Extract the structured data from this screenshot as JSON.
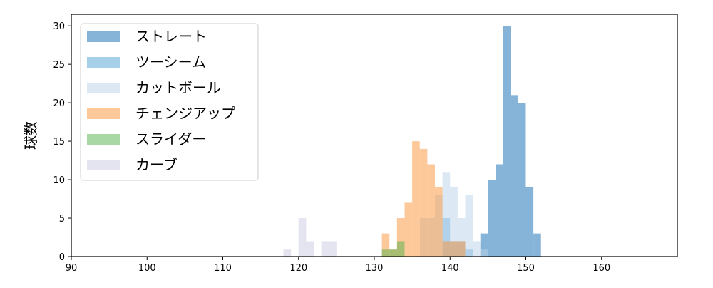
{
  "chart_data": {
    "type": "histogram",
    "ylabel": "球数",
    "xlim": [
      90,
      170
    ],
    "xticks": [
      90,
      100,
      110,
      120,
      130,
      140,
      150,
      160
    ],
    "ylim": [
      0,
      31.5
    ],
    "yticks": [
      0,
      5,
      10,
      15,
      20,
      25,
      30
    ],
    "legend": "upper left",
    "opacity": 0.5,
    "series": [
      {
        "name": "ストレート",
        "color": "#0d69b1",
        "bins": [
          144,
          145,
          146,
          147,
          148,
          149,
          150,
          151,
          152
        ],
        "values": [
          3,
          10,
          12,
          30,
          21,
          20,
          9,
          3
        ]
      },
      {
        "name": "ツーシーム",
        "color": "#4da1d1",
        "bins": [
          139,
          140,
          141,
          142,
          143
        ],
        "values": [
          5,
          2,
          2,
          1
        ]
      },
      {
        "name": "カットボール",
        "color": "#b9d1e9",
        "bins": [
          136,
          137,
          138,
          139,
          140,
          141,
          142,
          143,
          144,
          145
        ],
        "values": [
          5,
          5,
          8,
          11,
          9,
          5,
          8,
          2,
          1
        ]
      },
      {
        "name": "チェンジアップ",
        "color": "#fb9337",
        "bins": [
          131,
          132,
          133,
          134,
          135,
          136,
          137,
          138,
          139,
          140,
          141,
          142
        ],
        "values": [
          3,
          1,
          5,
          7,
          15,
          14,
          12,
          9,
          2,
          2,
          2
        ]
      },
      {
        "name": "スライダー",
        "color": "#51b149",
        "bins": [
          131,
          132,
          133,
          134
        ],
        "values": [
          1,
          1,
          2
        ]
      },
      {
        "name": "カーブ",
        "color": "#c9c9e1",
        "bins": [
          118,
          119,
          120,
          121,
          122,
          123,
          124,
          125
        ],
        "values": [
          1,
          0,
          5,
          2,
          0,
          2,
          2
        ]
      }
    ]
  }
}
